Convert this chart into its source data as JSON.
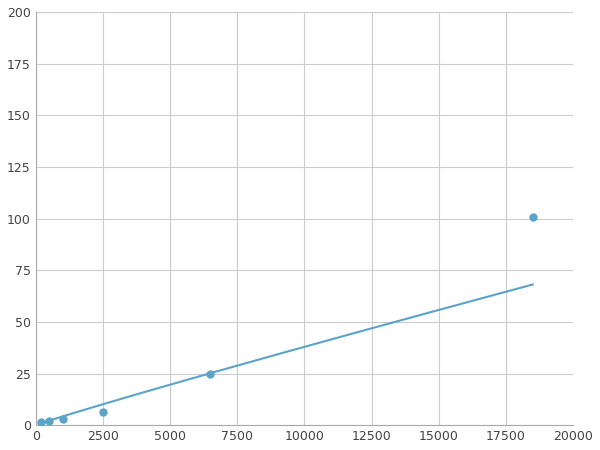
{
  "x": [
    200,
    500,
    1000,
    2500,
    6500,
    18500
  ],
  "y": [
    1.5,
    2.0,
    3.0,
    6.5,
    25,
    101
  ],
  "line_color": "#5BA3C9",
  "marker_color": "#5BA3C9",
  "marker_size": 6,
  "xlim": [
    0,
    20000
  ],
  "ylim": [
    0,
    200
  ],
  "xticks": [
    0,
    2500,
    5000,
    7500,
    10000,
    12500,
    15000,
    17500,
    20000
  ],
  "yticks": [
    0,
    25,
    50,
    75,
    100,
    125,
    150,
    175,
    200
  ],
  "grid_color": "#cccccc",
  "background_color": "#ffffff",
  "spine_color": "#aaaaaa",
  "power_a": 0.00012,
  "power_b": 1.55
}
